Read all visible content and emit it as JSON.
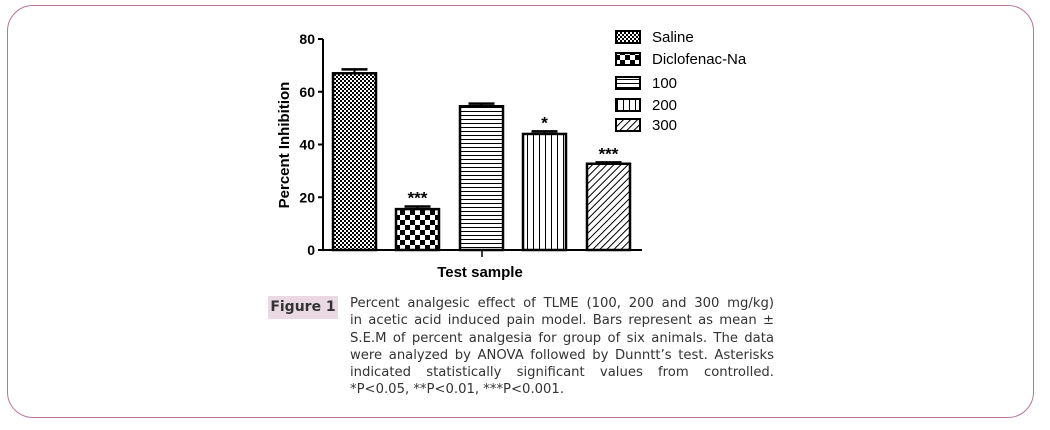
{
  "chart_data": {
    "type": "bar",
    "title": "",
    "xlabel": "Test sample",
    "ylabel": "Percent Inhibition",
    "ylim": [
      0,
      80
    ],
    "yticks": [
      0,
      20,
      40,
      60,
      80
    ],
    "categories": [
      "Saline",
      "Diclofenac-Na",
      "100",
      "200",
      "300"
    ],
    "values": [
      67,
      15.5,
      54.5,
      44,
      32.7
    ],
    "errors": [
      1.5,
      1,
      1,
      1,
      0.5
    ],
    "significance": [
      "",
      "***",
      "",
      "*",
      "***"
    ],
    "patterns": [
      "fine-checker",
      "checker",
      "horizontal",
      "vertical",
      "diagonal"
    ],
    "legend": [
      "Saline",
      "Diclofenac-Na",
      "100",
      "200",
      "300"
    ],
    "legend_position": "top-right",
    "grid": false
  },
  "figure": {
    "label": "Figure 1",
    "caption_lines": [
      "Percent analgesic effect of TLME (100, 200 and 300 mg/kg)",
      "in acetic acid induced pain model. Bars represent as mean ±",
      "S.E.M of percent analgesia for group of six animals. The data",
      "were analyzed by ANOVA followed by Dunntt’s test. Asterisks",
      "indicated statistically significant values from controlled.",
      "*P<0.05, **P<0.01, ***P<0.001."
    ]
  }
}
